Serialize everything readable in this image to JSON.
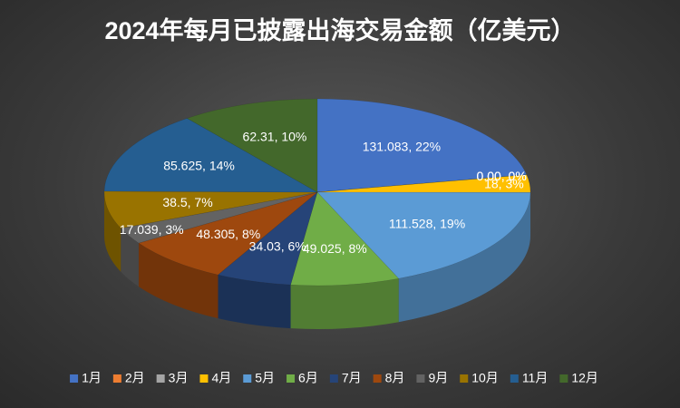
{
  "chart_data": {
    "type": "pie3d",
    "title": "2024年每月已披露出海交易金额（亿美元）",
    "categories": [
      "1月",
      "2月",
      "3月",
      "4月",
      "5月",
      "6月",
      "7月",
      "8月",
      "9月",
      "10月",
      "11月",
      "12月"
    ],
    "values": [
      131.083,
      0,
      0,
      18,
      111.528,
      49.025,
      34.03,
      48.305,
      17.039,
      38.5,
      85.625,
      62.31
    ],
    "value_labels": [
      "131.083, 22%",
      "0.00, 0%",
      "0.00, 0%",
      "18, 3%",
      "111.528, 19%",
      "49.025, 8%",
      "34.03, 6%",
      "48.305, 8%",
      "17.039, 3%",
      "38.5, 7%",
      "85.625, 14%",
      "62.31, 10%"
    ],
    "colors": [
      "#4472c4",
      "#ed7d31",
      "#a5a5a5",
      "#ffc000",
      "#5b9bd5",
      "#70ad47",
      "#264478",
      "#9e480e",
      "#636363",
      "#997300",
      "#255e91",
      "#43682b"
    ],
    "legend": "bottom"
  }
}
